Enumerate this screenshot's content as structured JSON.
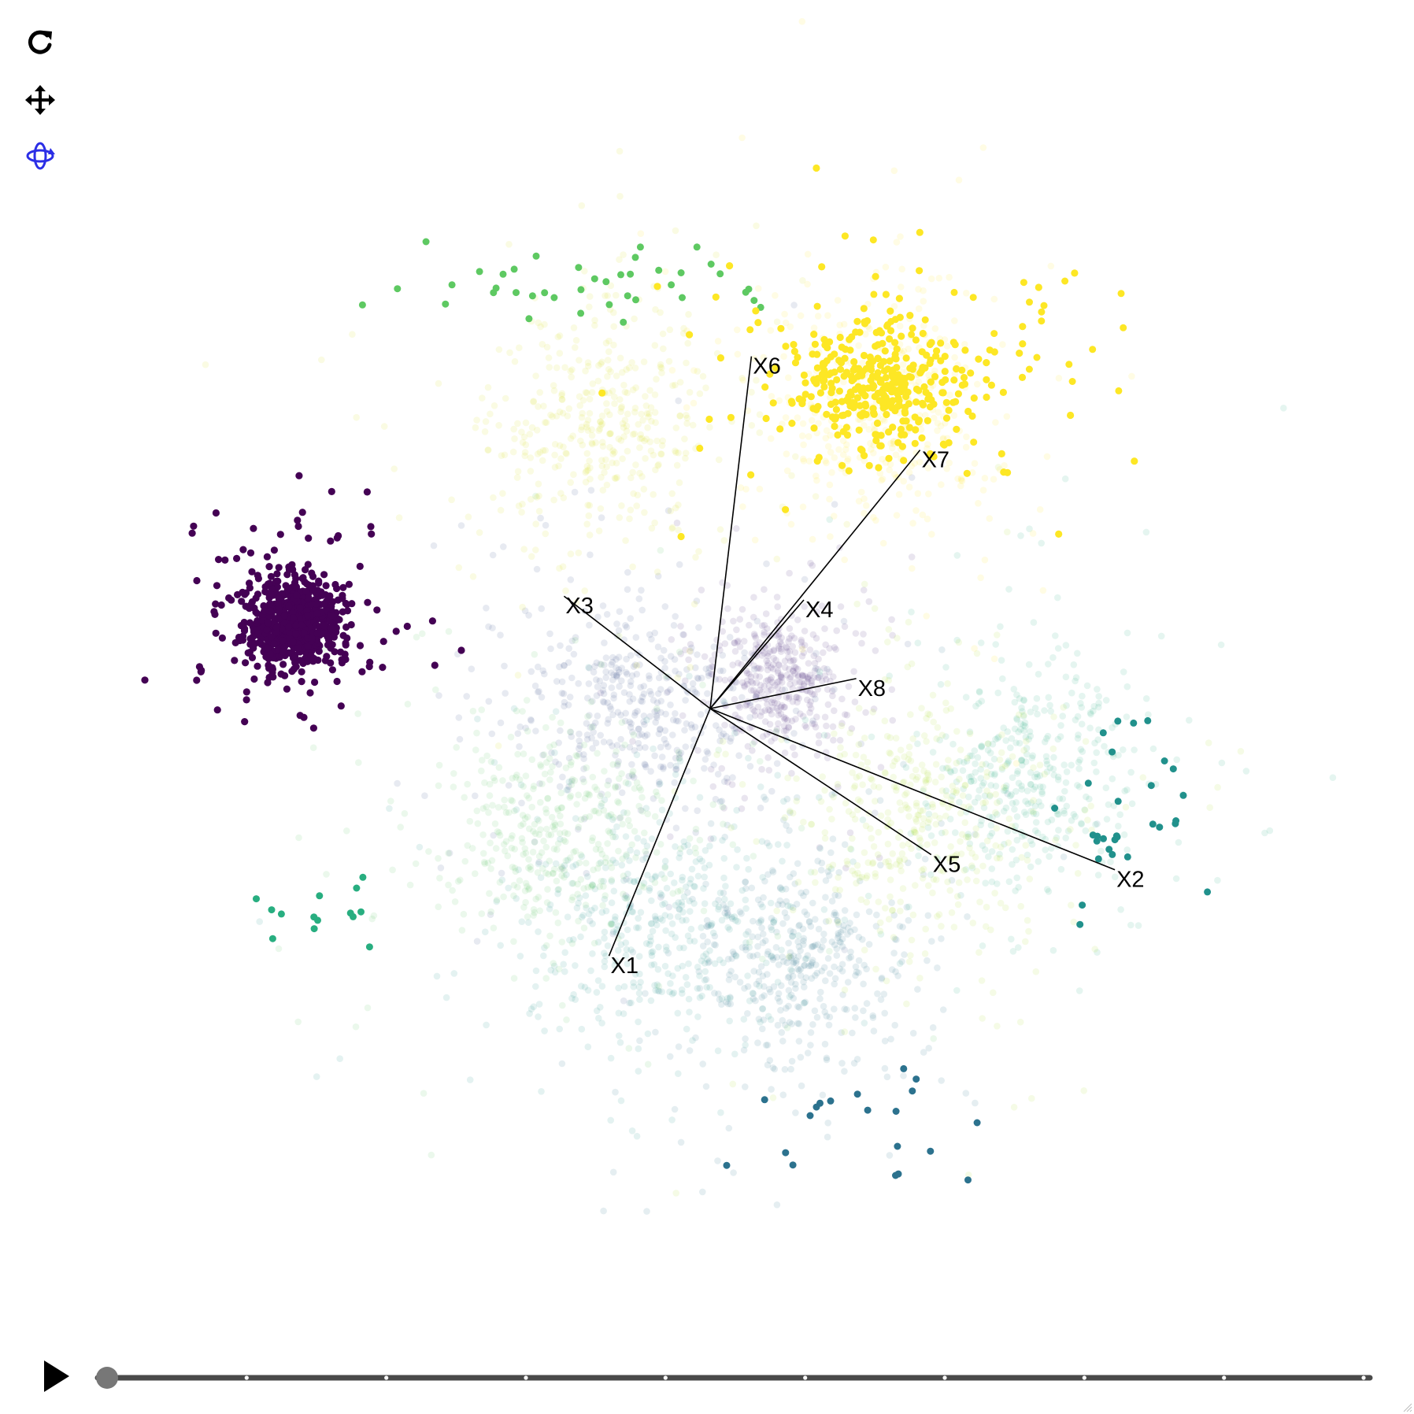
{
  "toolbar": {
    "reset_icon": "reset-rotate-icon",
    "pan_icon": "pan-move-icon",
    "rotate_icon": "rotate-3d-icon",
    "active_color": "#2b2ee6",
    "inactive_color": "#000000"
  },
  "player": {
    "play_icon": "play-icon",
    "track_color": "#4a4a4a",
    "handle_color": "#777777",
    "frame_marks": 10
  },
  "chart_data": {
    "type": "scatter",
    "title": "",
    "xlabel": "",
    "ylabel": "",
    "grid": false,
    "legend": "none",
    "palette": "viridis",
    "projection_axes": [
      {
        "name": "X1",
        "x": -0.27,
        "y": -0.66
      },
      {
        "name": "X2",
        "x": 1.08,
        "y": -0.43
      },
      {
        "name": "X3",
        "x": -0.39,
        "y": 0.3
      },
      {
        "name": "X4",
        "x": 0.25,
        "y": 0.29
      },
      {
        "name": "X5",
        "x": 0.59,
        "y": -0.39
      },
      {
        "name": "X6",
        "x": 0.11,
        "y": 0.94
      },
      {
        "name": "X7",
        "x": 0.56,
        "y": 0.69
      },
      {
        "name": "X8",
        "x": 0.39,
        "y": 0.08
      }
    ],
    "clusters": [
      {
        "id": 0,
        "color": "#440154",
        "highlighted": true,
        "center": [
          -1.11,
          0.23
        ],
        "spread": [
          0.06,
          0.06
        ],
        "n": 700
      },
      {
        "id": 1,
        "color": "#472d7b",
        "highlighted": false,
        "center": [
          0.18,
          0.07
        ],
        "spread": [
          0.08,
          0.09
        ],
        "n": 420
      },
      {
        "id": 2,
        "color": "#3b528b",
        "highlighted": false,
        "center": [
          -0.19,
          0.01
        ],
        "spread": [
          0.14,
          0.13
        ],
        "n": 450
      },
      {
        "id": 3,
        "color": "#2c728e",
        "highlighted": false,
        "center": [
          0.24,
          -0.69
        ],
        "spread": [
          0.14,
          0.14
        ],
        "n": 450
      },
      {
        "id": 4,
        "color": "#21918c",
        "highlighted": false,
        "center": [
          -0.16,
          -0.56
        ],
        "spread": [
          0.16,
          0.15
        ],
        "n": 450
      },
      {
        "id": 5,
        "color": "#28ae80",
        "highlighted": false,
        "center": [
          0.84,
          -0.17
        ],
        "spread": [
          0.13,
          0.14
        ],
        "n": 420
      },
      {
        "id": 6,
        "color": "#5ec962",
        "highlighted": false,
        "center": [
          -0.4,
          -0.33
        ],
        "spread": [
          0.15,
          0.14
        ],
        "n": 430
      },
      {
        "id": 7,
        "color": "#addc30",
        "highlighted": false,
        "center": [
          0.58,
          -0.29
        ],
        "spread": [
          0.15,
          0.16
        ],
        "n": 420
      },
      {
        "id": 8,
        "color": "#d8e219",
        "highlighted": false,
        "center": [
          -0.3,
          0.77
        ],
        "spread": [
          0.14,
          0.14
        ],
        "n": 420
      },
      {
        "id": 9,
        "color": "#fde725",
        "highlighted": true,
        "center": [
          0.45,
          0.87
        ],
        "spread": [
          0.12,
          0.08
        ],
        "n": 380
      },
      {
        "id": 10,
        "color": "#fde725",
        "highlighted": false,
        "center": [
          0.45,
          0.8
        ],
        "spread": [
          0.14,
          0.15
        ],
        "n": 380
      }
    ],
    "outlier_groups": [
      {
        "color": "#5ec962",
        "n": 40,
        "center": [
          -0.23,
          1.12
        ],
        "spread": [
          0.28,
          0.05
        ]
      },
      {
        "color": "#fde725",
        "n": 35,
        "center": [
          0.65,
          0.98
        ],
        "spread": [
          0.26,
          0.12
        ]
      },
      {
        "color": "#21918c",
        "n": 30,
        "center": [
          1.1,
          -0.32
        ],
        "spread": [
          0.1,
          0.18
        ]
      },
      {
        "color": "#2c728e",
        "n": 20,
        "center": [
          0.45,
          -1.06
        ],
        "spread": [
          0.17,
          0.1
        ]
      },
      {
        "color": "#28ae80",
        "n": 14,
        "center": [
          -1.03,
          -0.53
        ],
        "spread": [
          0.1,
          0.07
        ]
      }
    ],
    "xlim": [
      -1.3,
      1.3
    ],
    "ylim": [
      -1.3,
      1.3
    ]
  }
}
